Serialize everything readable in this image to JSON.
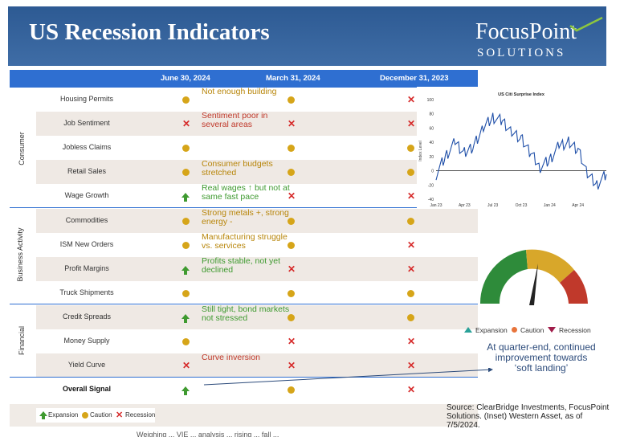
{
  "header": {
    "title": "US Recession Indicators",
    "logo_line1": "FocusPoint",
    "logo_line2": "SOLUTIONS"
  },
  "columns": [
    "June 30, 2024",
    "March 31, 2024",
    "December 31, 2023"
  ],
  "groups": {
    "consumer": "Consumer",
    "business": "Business Activity",
    "financial": "Financial"
  },
  "rows": [
    {
      "label": "Housing Permits",
      "jun": "caution",
      "mar": "caution",
      "dec": "recession",
      "note": "Not enough building",
      "note_tone": "caution"
    },
    {
      "label": "Job Sentiment",
      "jun": "recession",
      "mar": "recession",
      "dec": "recession",
      "note": "Sentiment poor in several areas",
      "note_tone": "recession"
    },
    {
      "label": "Jobless Claims",
      "jun": "caution",
      "mar": "caution",
      "dec": "caution",
      "note": "",
      "note_tone": "caution"
    },
    {
      "label": "Retail Sales",
      "jun": "caution",
      "mar": "caution",
      "dec": "caution",
      "note": "Consumer budgets stretched",
      "note_tone": "caution"
    },
    {
      "label": "Wage Growth",
      "jun": "expansion",
      "mar": "recession",
      "dec": "recession",
      "note": "Real wages ↑ but not at same fast pace",
      "note_tone": "expansion"
    },
    {
      "label": "Commodities",
      "jun": "caution",
      "mar": "caution",
      "dec": "caution",
      "note": "Strong metals +, strong energy -",
      "note_tone": "caution"
    },
    {
      "label": "ISM New Orders",
      "jun": "caution",
      "mar": "caution",
      "dec": "recession",
      "note": "Manufacturing struggle vs. services",
      "note_tone": "caution"
    },
    {
      "label": "Profit Margins",
      "jun": "expansion",
      "mar": "recession",
      "dec": "recession",
      "note": "Profits stable, not yet declined",
      "note_tone": "expansion"
    },
    {
      "label": "Truck Shipments",
      "jun": "caution",
      "mar": "caution",
      "dec": "caution",
      "note": "",
      "note_tone": "caution"
    },
    {
      "label": "Credit Spreads",
      "jun": "expansion",
      "mar": "caution",
      "dec": "caution",
      "note": "Still tight, bond markets not stressed",
      "note_tone": "expansion"
    },
    {
      "label": "Money Supply",
      "jun": "caution",
      "mar": "recession",
      "dec": "recession",
      "note": "",
      "note_tone": "caution"
    },
    {
      "label": "Yield Curve",
      "jun": "recession",
      "mar": "recession",
      "dec": "recession",
      "note": "Curve inversion",
      "note_tone": "recession"
    },
    {
      "label": "Overall Signal",
      "jun": "expansion",
      "mar": "caution",
      "dec": "recession",
      "note": "",
      "note_tone": "caution",
      "bold": true
    }
  ],
  "legend": {
    "expansion": "Expansion",
    "caution": "Caution",
    "recession": "Recession"
  },
  "inset_chart": {
    "title": "US Citi Surprise Index",
    "ylabel": "Index Level",
    "yticks": [
      "100",
      "80",
      "60",
      "40",
      "20",
      "0",
      "-20",
      "-40"
    ],
    "xticks": [
      "Jan 23",
      "Apr 23",
      "Jul 23",
      "Oct 23",
      "Jan 24",
      "Apr 24"
    ]
  },
  "chart_data": {
    "type": "line",
    "title": "US Citi Surprise Index",
    "ylabel": "Index Level",
    "ylim": [
      -40,
      100
    ],
    "x": [
      "Jan 23",
      "Feb 23",
      "Mar 23",
      "Apr 23",
      "May 23",
      "Jun 23",
      "Jul 23",
      "Aug 23",
      "Sep 23",
      "Oct 23",
      "Nov 23",
      "Dec 23",
      "Jan 24",
      "Feb 24",
      "Mar 24",
      "Apr 24",
      "May 24",
      "Jun 24",
      "Jul 24"
    ],
    "series": [
      {
        "name": "US Citi Surprise Index",
        "values": [
          -5,
          20,
          40,
          25,
          35,
          60,
          75,
          70,
          55,
          45,
          25,
          5,
          15,
          35,
          40,
          30,
          -5,
          -20,
          -5
        ]
      }
    ]
  },
  "gauge": {
    "legend_expansion": "Expansion",
    "legend_caution": "Caution",
    "legend_recession": "Recession",
    "color_expansion": "#2e8b3a",
    "color_caution": "#d8a72a",
    "color_recession": "#c0392b"
  },
  "callout": "At quarter-end, continued improvement towards ‘soft landing’",
  "source": "Source: ClearBridge Investments, FocusPoint Solutions. (Inset) Western Asset, as of 7/5/2024.",
  "bottom_text": "Weighing ... VIE ... analysis ... rising ... fall ..."
}
